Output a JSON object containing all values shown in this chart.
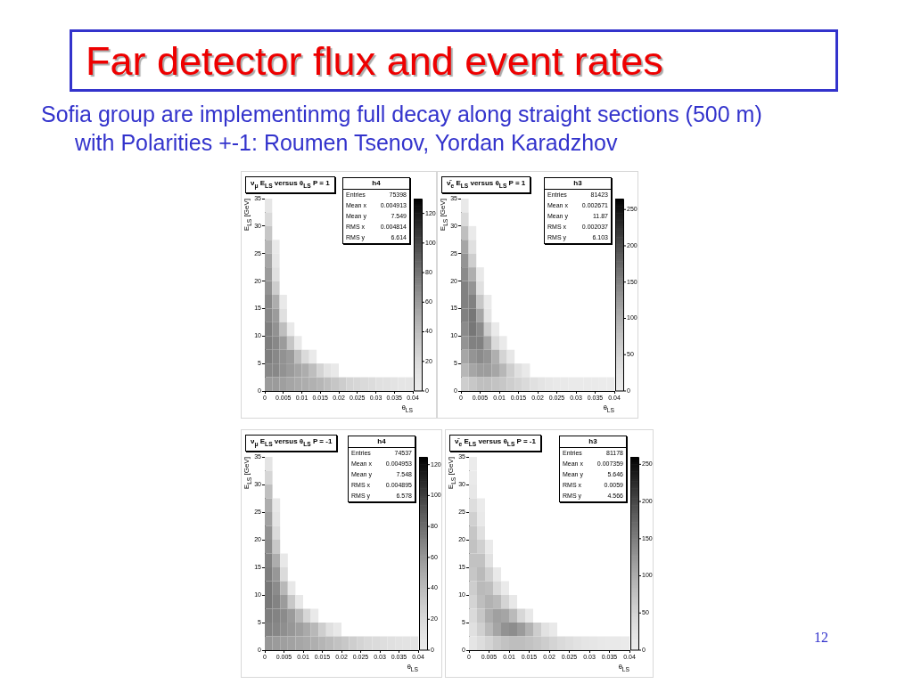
{
  "chart_data": [
    {
      "type": "other",
      "title": "Far detector flux and event rates",
      "subtitle": "Sofia group are implementinmg full decay along straight sections (500 m) with Polarities +-1: Roumen Tsenov, Yordan Karadzhov",
      "annotations": [
        "12"
      ]
    },
    {
      "type": "heatmap",
      "title": "ν$_{μ}$ E$_{LS}$ versus θ$_{LS}$ P = 1",
      "xlabel": "θ$_{LS}$",
      "ylabel": "E$_{LS}$ [GeV]",
      "xlim": [
        0,
        0.04
      ],
      "ylim": [
        0,
        35
      ],
      "xticks": [
        0,
        0.005,
        0.01,
        0.015,
        0.02,
        0.025,
        0.03,
        0.035,
        0.04
      ],
      "yticks": [
        0,
        5,
        10,
        15,
        20,
        25,
        30,
        35
      ],
      "clim": [
        0,
        130
      ],
      "cticks": [
        0,
        20,
        40,
        60,
        80,
        100,
        120
      ],
      "cells": [
        [
          8,
          null,
          null,
          null,
          null,
          null,
          null,
          null,
          null,
          null,
          null,
          null,
          null,
          null,
          null,
          null,
          null,
          null,
          null,
          null
        ],
        [
          20,
          null,
          null,
          null,
          null,
          null,
          null,
          null,
          null,
          null,
          null,
          null,
          null,
          null,
          null,
          null,
          null,
          null,
          null,
          null
        ],
        [
          35,
          null,
          null,
          null,
          null,
          null,
          null,
          null,
          null,
          null,
          null,
          null,
          null,
          null,
          null,
          null,
          null,
          null,
          null,
          null
        ],
        [
          45,
          4,
          null,
          null,
          null,
          null,
          null,
          null,
          null,
          null,
          null,
          null,
          null,
          null,
          null,
          null,
          null,
          null,
          null,
          null
        ],
        [
          55,
          8,
          null,
          null,
          null,
          null,
          null,
          null,
          null,
          null,
          null,
          null,
          null,
          null,
          null,
          null,
          null,
          null,
          null,
          null
        ],
        [
          60,
          15,
          null,
          null,
          null,
          null,
          null,
          null,
          null,
          null,
          null,
          null,
          null,
          null,
          null,
          null,
          null,
          null,
          null,
          null
        ],
        [
          65,
          30,
          null,
          null,
          null,
          null,
          null,
          null,
          null,
          null,
          null,
          null,
          null,
          null,
          null,
          null,
          null,
          null,
          null,
          null
        ],
        [
          70,
          50,
          5,
          null,
          null,
          null,
          null,
          null,
          null,
          null,
          null,
          null,
          null,
          null,
          null,
          null,
          null,
          null,
          null,
          null
        ],
        [
          70,
          60,
          15,
          null,
          null,
          null,
          null,
          null,
          null,
          null,
          null,
          null,
          null,
          null,
          null,
          null,
          null,
          null,
          null,
          null
        ],
        [
          75,
          65,
          40,
          5,
          null,
          null,
          null,
          null,
          null,
          null,
          null,
          null,
          null,
          null,
          null,
          null,
          null,
          null,
          null,
          null
        ],
        [
          75,
          70,
          60,
          35,
          5,
          null,
          null,
          null,
          null,
          null,
          null,
          null,
          null,
          null,
          null,
          null,
          null,
          null,
          null,
          null
        ],
        [
          75,
          70,
          65,
          60,
          40,
          20,
          3,
          null,
          null,
          null,
          null,
          null,
          null,
          null,
          null,
          null,
          null,
          null,
          null,
          null
        ],
        [
          70,
          70,
          65,
          60,
          55,
          50,
          40,
          25,
          12,
          4,
          null,
          null,
          null,
          null,
          null,
          null,
          null,
          null,
          null,
          null
        ],
        [
          60,
          60,
          58,
          55,
          52,
          50,
          48,
          45,
          40,
          35,
          30,
          25,
          22,
          20,
          18,
          15,
          14,
          12,
          10,
          9
        ]
      ],
      "annotations": [
        "h4",
        "Entries",
        "75398",
        "Mean x",
        "0.004913",
        "Mean y",
        "7.549",
        "RMS x",
        "0.004814",
        "RMS y",
        "6.614"
      ]
    },
    {
      "type": "heatmap",
      "title": "ν̄$_{e}$ E$_{LS}$ versus θ$_{LS}$ P = 1",
      "xlabel": "θ$_{LS}$",
      "ylabel": "E$_{LS}$ [GeV]",
      "xlim": [
        0,
        0.04
      ],
      "ylim": [
        0,
        35
      ],
      "xticks": [
        0,
        0.005,
        0.01,
        0.015,
        0.02,
        0.025,
        0.03,
        0.035,
        0.04
      ],
      "yticks": [
        0,
        5,
        10,
        15,
        20,
        25,
        30,
        35
      ],
      "clim": [
        0,
        265
      ],
      "cticks": [
        0,
        50,
        100,
        150,
        200,
        250
      ],
      "cells": [
        [
          10,
          null,
          null,
          null,
          null,
          null,
          null,
          null,
          null,
          null,
          null,
          null,
          null,
          null,
          null,
          null,
          null,
          null,
          null,
          null
        ],
        [
          40,
          null,
          null,
          null,
          null,
          null,
          null,
          null,
          null,
          null,
          null,
          null,
          null,
          null,
          null,
          null,
          null,
          null,
          null,
          null
        ],
        [
          80,
          5,
          null,
          null,
          null,
          null,
          null,
          null,
          null,
          null,
          null,
          null,
          null,
          null,
          null,
          null,
          null,
          null,
          null,
          null
        ],
        [
          110,
          30,
          null,
          null,
          null,
          null,
          null,
          null,
          null,
          null,
          null,
          null,
          null,
          null,
          null,
          null,
          null,
          null,
          null,
          null
        ],
        [
          130,
          60,
          null,
          null,
          null,
          null,
          null,
          null,
          null,
          null,
          null,
          null,
          null,
          null,
          null,
          null,
          null,
          null,
          null,
          null
        ],
        [
          140,
          100,
          10,
          null,
          null,
          null,
          null,
          null,
          null,
          null,
          null,
          null,
          null,
          null,
          null,
          null,
          null,
          null,
          null,
          null
        ],
        [
          150,
          130,
          30,
          null,
          null,
          null,
          null,
          null,
          null,
          null,
          null,
          null,
          null,
          null,
          null,
          null,
          null,
          null,
          null,
          null
        ],
        [
          150,
          150,
          70,
          5,
          null,
          null,
          null,
          null,
          null,
          null,
          null,
          null,
          null,
          null,
          null,
          null,
          null,
          null,
          null,
          null
        ],
        [
          150,
          160,
          110,
          20,
          null,
          null,
          null,
          null,
          null,
          null,
          null,
          null,
          null,
          null,
          null,
          null,
          null,
          null,
          null,
          null
        ],
        [
          140,
          160,
          140,
          60,
          5,
          null,
          null,
          null,
          null,
          null,
          null,
          null,
          null,
          null,
          null,
          null,
          null,
          null,
          null,
          null
        ],
        [
          130,
          150,
          150,
          110,
          40,
          5,
          null,
          null,
          null,
          null,
          null,
          null,
          null,
          null,
          null,
          null,
          null,
          null,
          null,
          null
        ],
        [
          110,
          130,
          140,
          130,
          100,
          50,
          15,
          null,
          null,
          null,
          null,
          null,
          null,
          null,
          null,
          null,
          null,
          null,
          null,
          null
        ],
        [
          90,
          110,
          120,
          120,
          110,
          90,
          60,
          30,
          10,
          null,
          null,
          null,
          null,
          null,
          null,
          null,
          null,
          null,
          null,
          null
        ],
        [
          60,
          70,
          80,
          80,
          75,
          70,
          60,
          50,
          40,
          30,
          22,
          15,
          10,
          8,
          6,
          5,
          4,
          4,
          3,
          3
        ]
      ],
      "annotations": [
        "h3",
        "Entries",
        "81423",
        "Mean x",
        "0.002671",
        "Mean y",
        "11.87",
        "RMS x",
        "0.002037",
        "RMS y",
        "6.103"
      ]
    },
    {
      "type": "heatmap",
      "title": "ν$_{μ}$ E$_{LS}$ versus θ$_{LS}$ P = -1",
      "xlabel": "θ$_{LS}$",
      "ylabel": "E$_{LS}$ [GeV]",
      "xlim": [
        0,
        0.04
      ],
      "ylim": [
        0,
        35
      ],
      "xticks": [
        0,
        0.005,
        0.01,
        0.015,
        0.02,
        0.025,
        0.03,
        0.035,
        0.04
      ],
      "yticks": [
        0,
        5,
        10,
        15,
        20,
        25,
        30,
        35
      ],
      "clim": [
        0,
        125
      ],
      "cticks": [
        0,
        20,
        40,
        60,
        80,
        100,
        120
      ],
      "cells": [
        [
          10,
          null,
          null,
          null,
          null,
          null,
          null,
          null,
          null,
          null,
          null,
          null,
          null,
          null,
          null,
          null,
          null,
          null,
          null,
          null
        ],
        [
          22,
          null,
          null,
          null,
          null,
          null,
          null,
          null,
          null,
          null,
          null,
          null,
          null,
          null,
          null,
          null,
          null,
          null,
          null,
          null
        ],
        [
          38,
          null,
          null,
          null,
          null,
          null,
          null,
          null,
          null,
          null,
          null,
          null,
          null,
          null,
          null,
          null,
          null,
          null,
          null,
          null
        ],
        [
          48,
          5,
          null,
          null,
          null,
          null,
          null,
          null,
          null,
          null,
          null,
          null,
          null,
          null,
          null,
          null,
          null,
          null,
          null,
          null
        ],
        [
          55,
          10,
          null,
          null,
          null,
          null,
          null,
          null,
          null,
          null,
          null,
          null,
          null,
          null,
          null,
          null,
          null,
          null,
          null,
          null
        ],
        [
          62,
          18,
          null,
          null,
          null,
          null,
          null,
          null,
          null,
          null,
          null,
          null,
          null,
          null,
          null,
          null,
          null,
          null,
          null,
          null
        ],
        [
          65,
          32,
          null,
          null,
          null,
          null,
          null,
          null,
          null,
          null,
          null,
          null,
          null,
          null,
          null,
          null,
          null,
          null,
          null,
          null
        ],
        [
          70,
          48,
          6,
          null,
          null,
          null,
          null,
          null,
          null,
          null,
          null,
          null,
          null,
          null,
          null,
          null,
          null,
          null,
          null,
          null
        ],
        [
          72,
          60,
          18,
          null,
          null,
          null,
          null,
          null,
          null,
          null,
          null,
          null,
          null,
          null,
          null,
          null,
          null,
          null,
          null,
          null
        ],
        [
          75,
          66,
          42,
          6,
          null,
          null,
          null,
          null,
          null,
          null,
          null,
          null,
          null,
          null,
          null,
          null,
          null,
          null,
          null,
          null
        ],
        [
          75,
          70,
          58,
          32,
          6,
          null,
          null,
          null,
          null,
          null,
          null,
          null,
          null,
          null,
          null,
          null,
          null,
          null,
          null,
          null
        ],
        [
          72,
          70,
          66,
          58,
          42,
          22,
          4,
          null,
          null,
          null,
          null,
          null,
          null,
          null,
          null,
          null,
          null,
          null,
          null,
          null
        ],
        [
          70,
          68,
          64,
          60,
          56,
          50,
          42,
          28,
          14,
          5,
          null,
          null,
          null,
          null,
          null,
          null,
          null,
          null,
          null,
          null
        ],
        [
          60,
          58,
          56,
          54,
          52,
          50,
          47,
          44,
          40,
          36,
          32,
          28,
          24,
          20,
          18,
          16,
          14,
          12,
          11,
          10
        ]
      ],
      "annotations": [
        "h4",
        "Entries",
        "74537",
        "Mean x",
        "0.004953",
        "Mean y",
        "7.548",
        "RMS x",
        "0.004895",
        "RMS y",
        "6.578"
      ]
    },
    {
      "type": "heatmap",
      "title": "ν̄$_{e}$ E$_{LS}$ versus θ$_{LS}$ P = -1",
      "xlabel": "θ$_{LS}$",
      "ylabel": "E$_{LS}$ [GeV]",
      "xlim": [
        0,
        0.04
      ],
      "ylim": [
        0,
        35
      ],
      "xticks": [
        0,
        0.005,
        0.01,
        0.015,
        0.02,
        0.025,
        0.03,
        0.035,
        0.04
      ],
      "yticks": [
        0,
        5,
        10,
        15,
        20,
        25,
        30,
        35
      ],
      "clim": [
        0,
        260
      ],
      "cticks": [
        0,
        50,
        100,
        150,
        200,
        250
      ],
      "cells": [
        [
          2,
          null,
          null,
          null,
          null,
          null,
          null,
          null,
          null,
          null,
          null,
          null,
          null,
          null,
          null,
          null,
          null,
          null,
          null,
          null
        ],
        [
          5,
          null,
          null,
          null,
          null,
          null,
          null,
          null,
          null,
          null,
          null,
          null,
          null,
          null,
          null,
          null,
          null,
          null,
          null,
          null
        ],
        [
          15,
          null,
          null,
          null,
          null,
          null,
          null,
          null,
          null,
          null,
          null,
          null,
          null,
          null,
          null,
          null,
          null,
          null,
          null,
          null
        ],
        [
          35,
          3,
          null,
          null,
          null,
          null,
          null,
          null,
          null,
          null,
          null,
          null,
          null,
          null,
          null,
          null,
          null,
          null,
          null,
          null
        ],
        [
          55,
          10,
          null,
          null,
          null,
          null,
          null,
          null,
          null,
          null,
          null,
          null,
          null,
          null,
          null,
          null,
          null,
          null,
          null,
          null
        ],
        [
          70,
          30,
          null,
          null,
          null,
          null,
          null,
          null,
          null,
          null,
          null,
          null,
          null,
          null,
          null,
          null,
          null,
          null,
          null,
          null
        ],
        [
          75,
          55,
          5,
          null,
          null,
          null,
          null,
          null,
          null,
          null,
          null,
          null,
          null,
          null,
          null,
          null,
          null,
          null,
          null,
          null
        ],
        [
          75,
          75,
          25,
          null,
          null,
          null,
          null,
          null,
          null,
          null,
          null,
          null,
          null,
          null,
          null,
          null,
          null,
          null,
          null,
          null
        ],
        [
          70,
          85,
          55,
          8,
          null,
          null,
          null,
          null,
          null,
          null,
          null,
          null,
          null,
          null,
          null,
          null,
          null,
          null,
          null,
          null
        ],
        [
          60,
          85,
          80,
          40,
          5,
          null,
          null,
          null,
          null,
          null,
          null,
          null,
          null,
          null,
          null,
          null,
          null,
          null,
          null,
          null
        ],
        [
          50,
          80,
          95,
          85,
          50,
          12,
          null,
          null,
          null,
          null,
          null,
          null,
          null,
          null,
          null,
          null,
          null,
          null,
          null,
          null
        ],
        [
          40,
          70,
          100,
          115,
          110,
          85,
          45,
          12,
          null,
          null,
          null,
          null,
          null,
          null,
          null,
          null,
          null,
          null,
          null,
          null
        ],
        [
          30,
          55,
          85,
          110,
          130,
          135,
          120,
          95,
          60,
          25,
          8,
          null,
          null,
          null,
          null,
          null,
          null,
          null,
          null,
          null
        ],
        [
          20,
          35,
          50,
          65,
          75,
          80,
          80,
          75,
          68,
          60,
          50,
          40,
          32,
          25,
          20,
          16,
          12,
          10,
          8,
          6
        ]
      ],
      "annotations": [
        "h3",
        "Entries",
        "81178",
        "Mean x",
        "0.007359",
        "Mean y",
        "5.646",
        "RMS x",
        "0.0059",
        "RMS y",
        "4.566"
      ]
    }
  ]
}
